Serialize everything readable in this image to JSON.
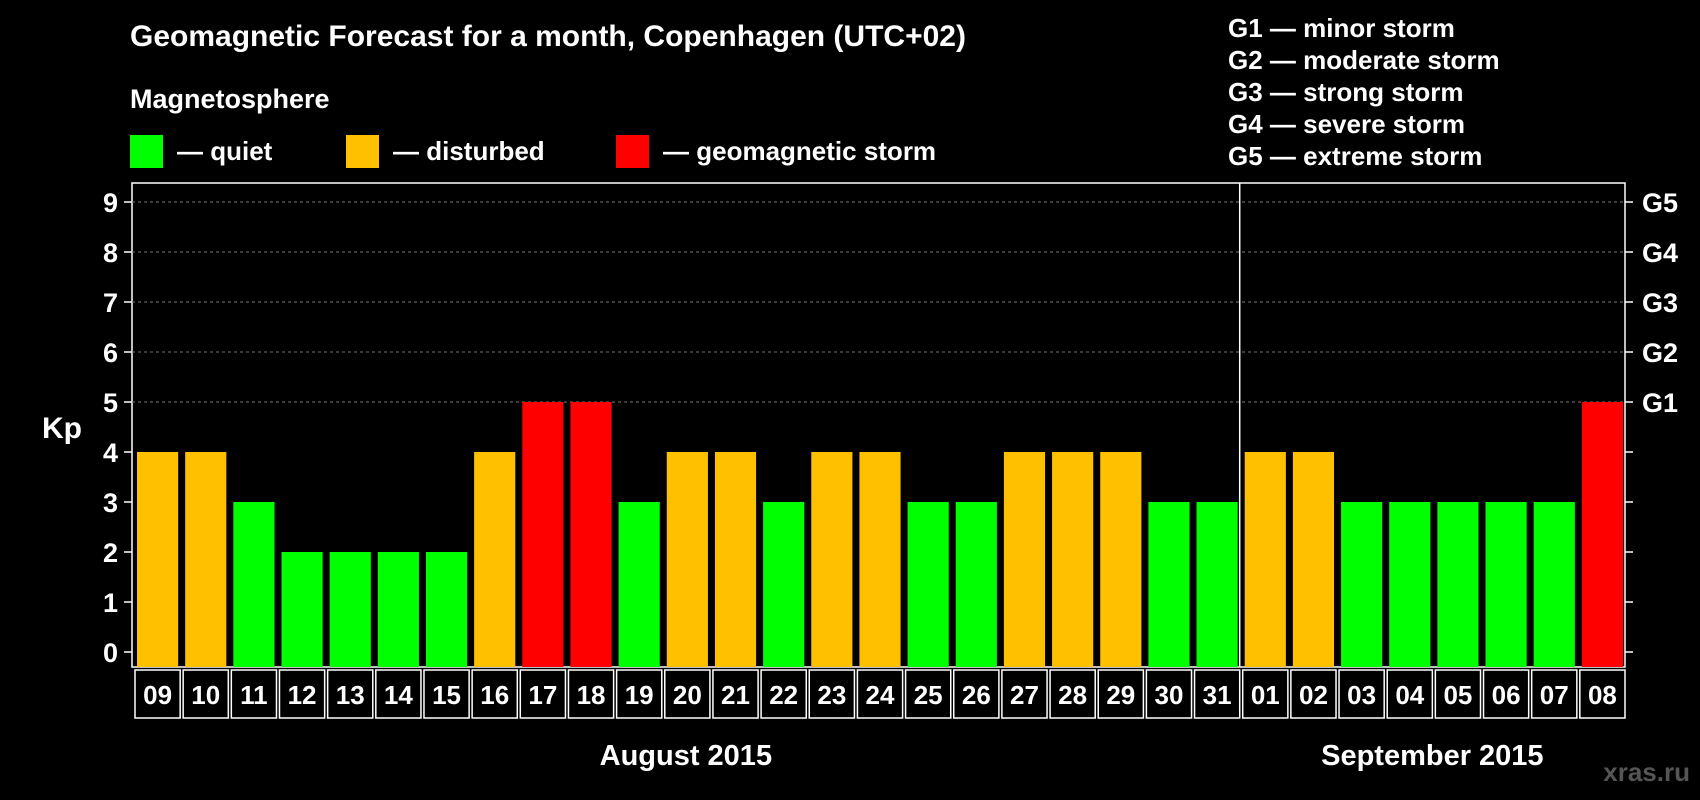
{
  "title": "Geomagnetic Forecast for a month, Copenhagen (UTC+02)",
  "legend": {
    "heading": "Magnetosphere",
    "items": [
      {
        "key": "quiet",
        "label": "— quiet",
        "color": "#00ff00"
      },
      {
        "key": "disturbed",
        "label": "— disturbed",
        "color": "#ffc000"
      },
      {
        "key": "storm",
        "label": "— geomagnetic storm",
        "color": "#ff0000"
      }
    ]
  },
  "g_scale_legend": [
    "G1 — minor storm",
    "G2 — moderate storm",
    "G3 — strong storm",
    "G4 — severe storm",
    "G5 — extreme storm"
  ],
  "watermark": "xras.ru",
  "chart_data": {
    "type": "bar",
    "ylabel": "Kp",
    "ylim": [
      0,
      9
    ],
    "yticks": [
      0,
      1,
      2,
      3,
      4,
      5,
      6,
      7,
      8,
      9
    ],
    "right_axis_labels": [
      {
        "kp": 5,
        "label": "G1"
      },
      {
        "kp": 6,
        "label": "G2"
      },
      {
        "kp": 7,
        "label": "G3"
      },
      {
        "kp": 8,
        "label": "G4"
      },
      {
        "kp": 9,
        "label": "G5"
      }
    ],
    "grid": true,
    "categories": [
      "09",
      "10",
      "11",
      "12",
      "13",
      "14",
      "15",
      "16",
      "17",
      "18",
      "19",
      "20",
      "21",
      "22",
      "23",
      "24",
      "25",
      "26",
      "27",
      "28",
      "29",
      "30",
      "31",
      "01",
      "02",
      "03",
      "04",
      "05",
      "06",
      "07",
      "08"
    ],
    "values": [
      4,
      4,
      3,
      2,
      2,
      2,
      2,
      4,
      5,
      5,
      3,
      4,
      4,
      3,
      4,
      4,
      3,
      3,
      4,
      4,
      4,
      3,
      3,
      4,
      4,
      3,
      3,
      3,
      3,
      3,
      5
    ],
    "color_scale": {
      "quiet_max": 3,
      "disturbed": 4,
      "storm_min": 5
    },
    "months": [
      {
        "label": "August 2015",
        "first_index": 0,
        "last_index": 22
      },
      {
        "label": "September 2015",
        "first_index": 23,
        "last_index": 30
      }
    ]
  }
}
